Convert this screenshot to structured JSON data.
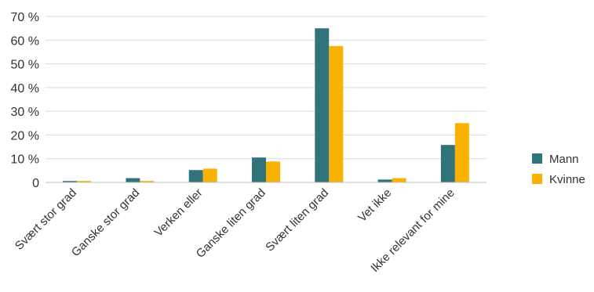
{
  "chart_data": {
    "type": "bar",
    "title": "",
    "xlabel": "",
    "ylabel": "",
    "categories": [
      "Svært stor grad",
      "Ganske stor grad",
      "Verken eller",
      "Ganske liten grad",
      "Svært liten grad",
      "Vet ikke",
      "Ikke relevant for mine"
    ],
    "series": [
      {
        "name": "Mann",
        "color": "#31737a",
        "values": [
          0.6,
          1.8,
          5.2,
          10.5,
          65.0,
          1.2,
          15.8
        ]
      },
      {
        "name": "Kvinne",
        "color": "#f9b200",
        "values": [
          0.6,
          0.6,
          5.8,
          8.8,
          57.5,
          1.8,
          25.0
        ]
      }
    ],
    "ylim": [
      0,
      70
    ],
    "yticks": [
      0,
      10,
      20,
      30,
      40,
      50,
      60,
      70
    ],
    "ytick_labels": [
      "0",
      "10 %",
      "20 %",
      "30 %",
      "40 %",
      "50 %",
      "60 %",
      "70 %"
    ],
    "grid": true,
    "legend_position": "right"
  }
}
